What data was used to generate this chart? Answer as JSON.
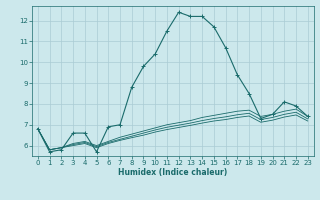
{
  "title": "",
  "xlabel": "Humidex (Indice chaleur)",
  "bg_color": "#cce8ec",
  "grid_color": "#aaccd4",
  "line_color": "#1a6b6b",
  "xlim": [
    -0.5,
    23.5
  ],
  "ylim": [
    5.5,
    12.7
  ],
  "yticks": [
    6,
    7,
    8,
    9,
    10,
    11,
    12
  ],
  "xticks": [
    0,
    1,
    2,
    3,
    4,
    5,
    6,
    7,
    8,
    9,
    10,
    11,
    12,
    13,
    14,
    15,
    16,
    17,
    18,
    19,
    20,
    21,
    22,
    23
  ],
  "series": [
    [
      6.8,
      5.7,
      5.8,
      6.6,
      6.6,
      5.7,
      6.9,
      7.0,
      8.8,
      9.8,
      10.4,
      11.5,
      12.4,
      12.2,
      12.2,
      11.7,
      10.7,
      9.4,
      8.5,
      7.3,
      7.5,
      8.1,
      7.9,
      7.4
    ],
    [
      6.8,
      5.8,
      5.9,
      6.1,
      6.2,
      6.0,
      6.2,
      6.4,
      6.55,
      6.7,
      6.85,
      7.0,
      7.1,
      7.2,
      7.35,
      7.45,
      7.55,
      7.65,
      7.7,
      7.4,
      7.5,
      7.65,
      7.75,
      7.4
    ],
    [
      6.8,
      5.8,
      5.9,
      6.05,
      6.15,
      5.95,
      6.15,
      6.3,
      6.45,
      6.6,
      6.75,
      6.88,
      6.98,
      7.08,
      7.2,
      7.3,
      7.38,
      7.48,
      7.55,
      7.25,
      7.35,
      7.5,
      7.6,
      7.28
    ],
    [
      6.8,
      5.8,
      5.9,
      6.0,
      6.1,
      5.9,
      6.1,
      6.25,
      6.38,
      6.5,
      6.65,
      6.77,
      6.87,
      6.97,
      7.08,
      7.18,
      7.25,
      7.35,
      7.42,
      7.12,
      7.22,
      7.37,
      7.47,
      7.18
    ]
  ]
}
